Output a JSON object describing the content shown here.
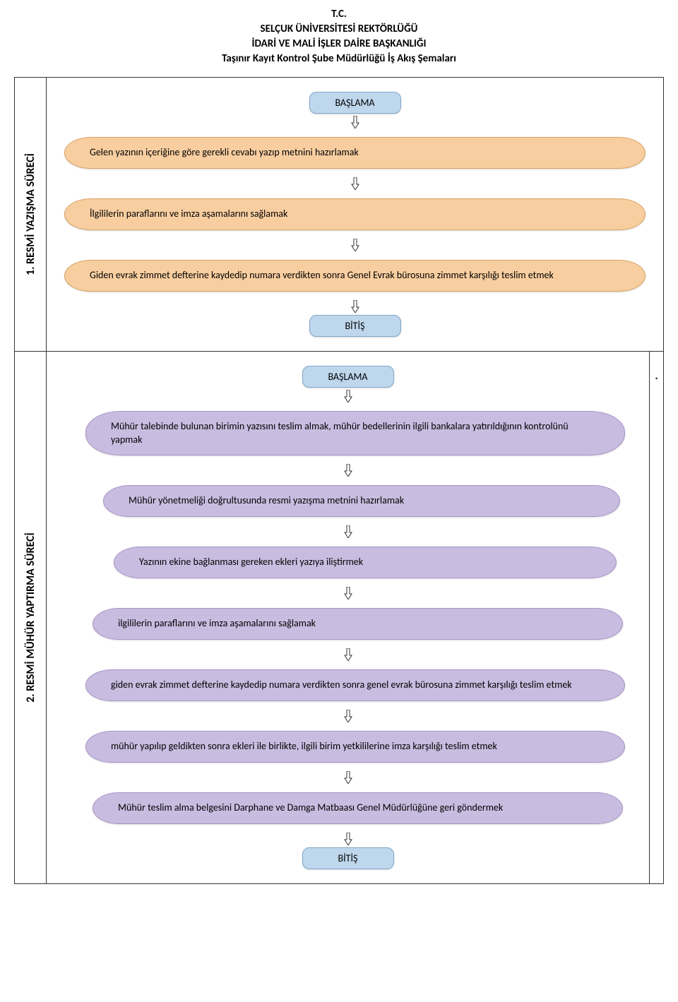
{
  "header": {
    "line1": "T.C.",
    "line2": "SELÇUK ÜNİVERSİTESİ REKTÖRLÜĞÜ",
    "line3": "İDARİ VE MALİ İŞLER DAİRE BAŞKANLIĞI",
    "line4": "Taşınır Kayıt Kontrol Şube Müdürlüğü İş Akış Şemaları"
  },
  "badges": {
    "start": "BAŞLAMA",
    "end": "BİTİŞ"
  },
  "colors": {
    "badge_bg": "#bfd7ed",
    "badge_border": "#7fa8c9",
    "sec1_bg": "#f8cea0",
    "sec1_border": "#d9a15f",
    "sec2_bg": "#c8bde0",
    "sec2_border": "#a893c9",
    "text": "#222222"
  },
  "section1": {
    "label": "1.  RESMİ YAZIŞMA SÜRECİ",
    "steps": [
      "Gelen yazının içeriğine göre gerekli cevabı yazıp metnini hazırlamak",
      "İlgililerin paraflarını  ve imza aşamalarını  sağlamak",
      "Giden evrak zimmet defterine kaydedip numara verdikten sonra Genel Evrak bürosuna zimmet karşılığı teslim etmek"
    ]
  },
  "section2": {
    "label": "2.  RESMİ MÜHÜR YAPTIRMA SÜRECİ",
    "dot": ".",
    "steps": [
      "Mühür talebinde bulunan birimin yazısını teslim almak, mühür bedellerinin ilgili bankalara yatırıldığının kontrolünü yapmak",
      "Mühür yönetmeliği doğrultusunda resmi yazışma metnini hazırlamak",
      "Yazının ekine bağlanması gereken ekleri yazıya iliştirmek",
      "ilgililerin paraflarını ve imza aşamalarını sağlamak",
      "giden evrak zimmet defterine kaydedip numara verdikten sonra genel evrak bürosuna zimmet karşılığı teslim etmek",
      "mühür yapılıp geldikten sonra ekleri ile birlikte, ilgili birim yetkililerine imza karşılığı teslim etmek",
      "Mühür teslim alma belgesini Darphane ve Damga Matbaası Genel Müdürlüğüne geri göndermek"
    ],
    "indents": [
      30,
      55,
      70,
      40,
      30,
      30,
      40
    ]
  }
}
